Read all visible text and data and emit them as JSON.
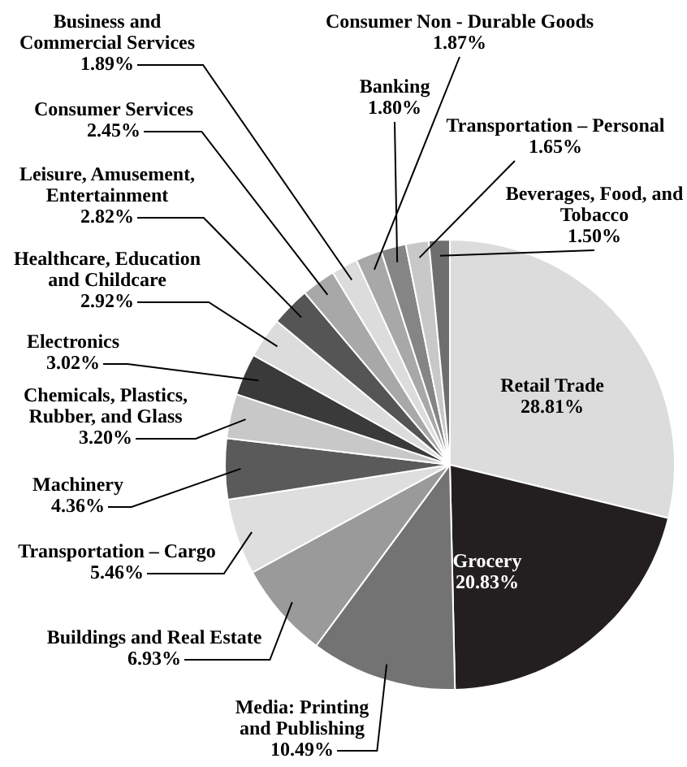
{
  "chart_data": {
    "type": "pie",
    "categories": [
      "Retail Trade",
      "Grocery",
      "Media: Printing and Publishing",
      "Buildings and Real Estate",
      "Transportation – Cargo",
      "Machinery",
      "Chemicals, Plastics, Rubber, and Glass",
      "Electronics",
      "Healthcare, Education and Childcare",
      "Leisure, Amusement, Entertainment",
      "Consumer Services",
      "Business and Commercial Services",
      "Consumer Non - Durable Goods",
      "Banking",
      "Transportation – Personal",
      "Beverages, Food, and Tobacco"
    ],
    "values": [
      28.81,
      20.83,
      10.49,
      6.93,
      5.46,
      4.36,
      3.2,
      3.02,
      2.92,
      2.82,
      2.45,
      1.89,
      1.87,
      1.8,
      1.65,
      1.5
    ],
    "colors": [
      "#dcdcdc",
      "#231f20",
      "#737373",
      "#9a9a9a",
      "#dedede",
      "#5a5a5a",
      "#c8c8c8",
      "#3a3a3a",
      "#dcdcdc",
      "#555555",
      "#a8a8a8",
      "#dcdcdc",
      "#a8a8a8",
      "#858585",
      "#c8c8c8",
      "#6e6e6e"
    ],
    "value_labels": [
      "28.81%",
      "20.83%",
      "10.49%",
      "6.93%",
      "5.46%",
      "4.36%",
      "3.20%",
      "3.02%",
      "2.92%",
      "2.82%",
      "2.45%",
      "1.89%",
      "1.87%",
      "1.80%",
      "1.65%",
      "1.50%"
    ],
    "legend": false
  }
}
